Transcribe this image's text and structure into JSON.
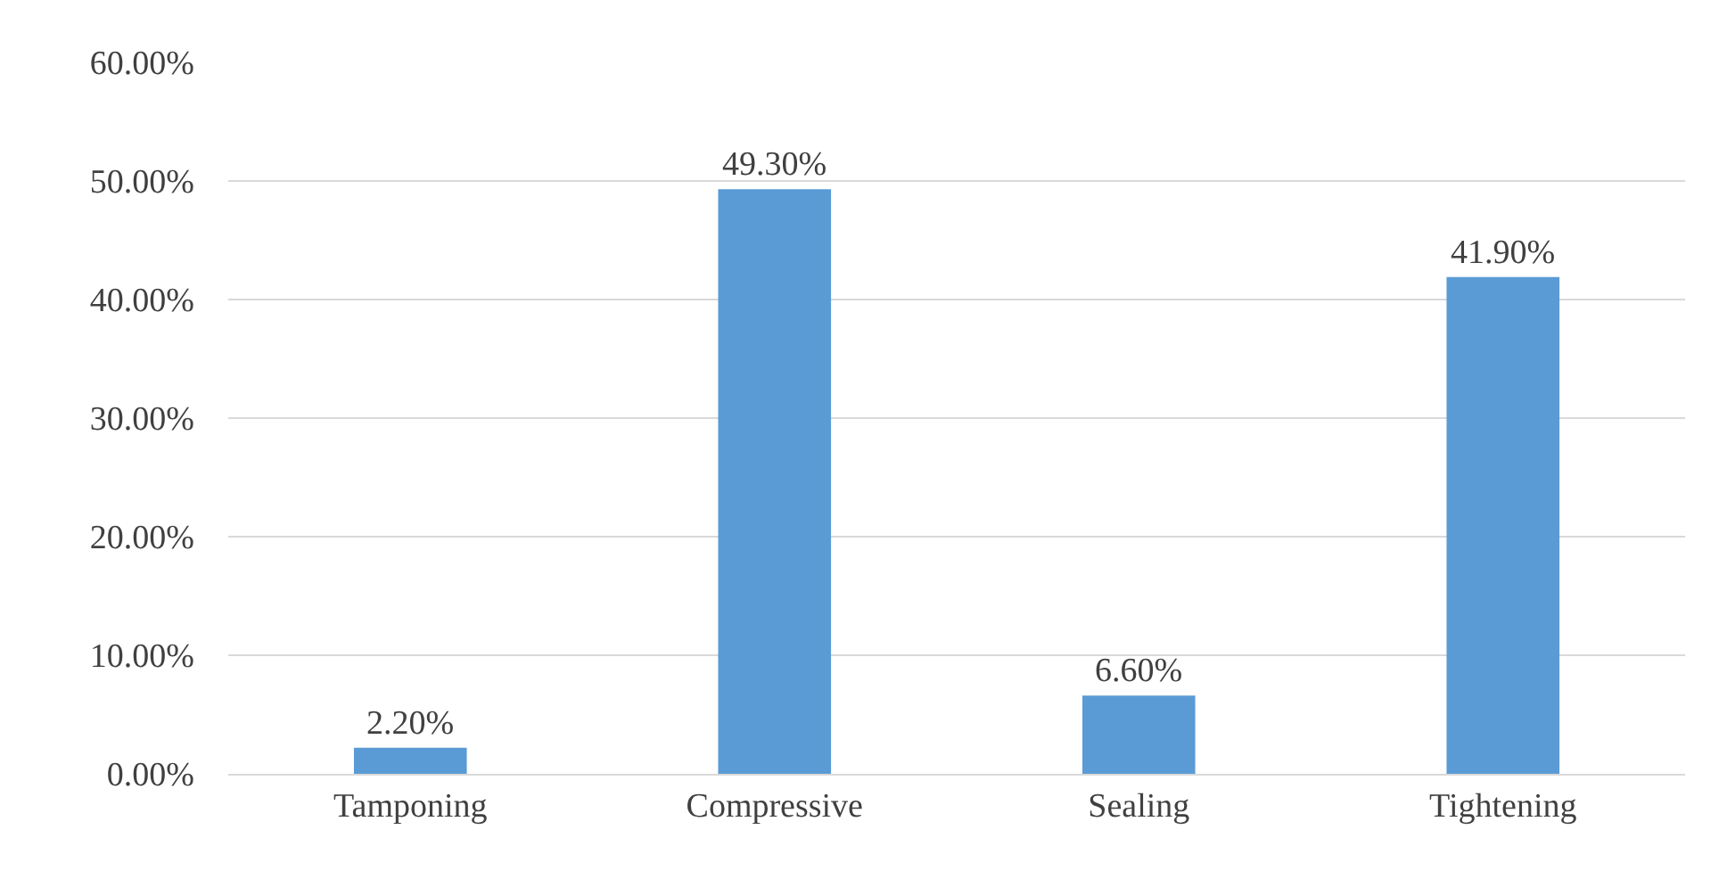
{
  "chart_data": {
    "type": "bar",
    "categories": [
      "Tamponing",
      "Compressive",
      "Sealing",
      "Tightening"
    ],
    "values": [
      2.2,
      49.3,
      6.6,
      41.9
    ],
    "value_labels": [
      "2.20%",
      "49.30%",
      "6.60%",
      "41.90%"
    ],
    "color": "#5b9bd5",
    "ylim": [
      0,
      60
    ],
    "yticks": [
      {
        "value": 0,
        "label": "0.00%"
      },
      {
        "value": 10,
        "label": "10.00%"
      },
      {
        "value": 20,
        "label": "20.00%"
      },
      {
        "value": 30,
        "label": "30.00%"
      },
      {
        "value": 40,
        "label": "40.00%"
      },
      {
        "value": 50,
        "label": "50.00%"
      },
      {
        "value": 60,
        "label": "60.00%"
      }
    ],
    "grid": "y"
  }
}
